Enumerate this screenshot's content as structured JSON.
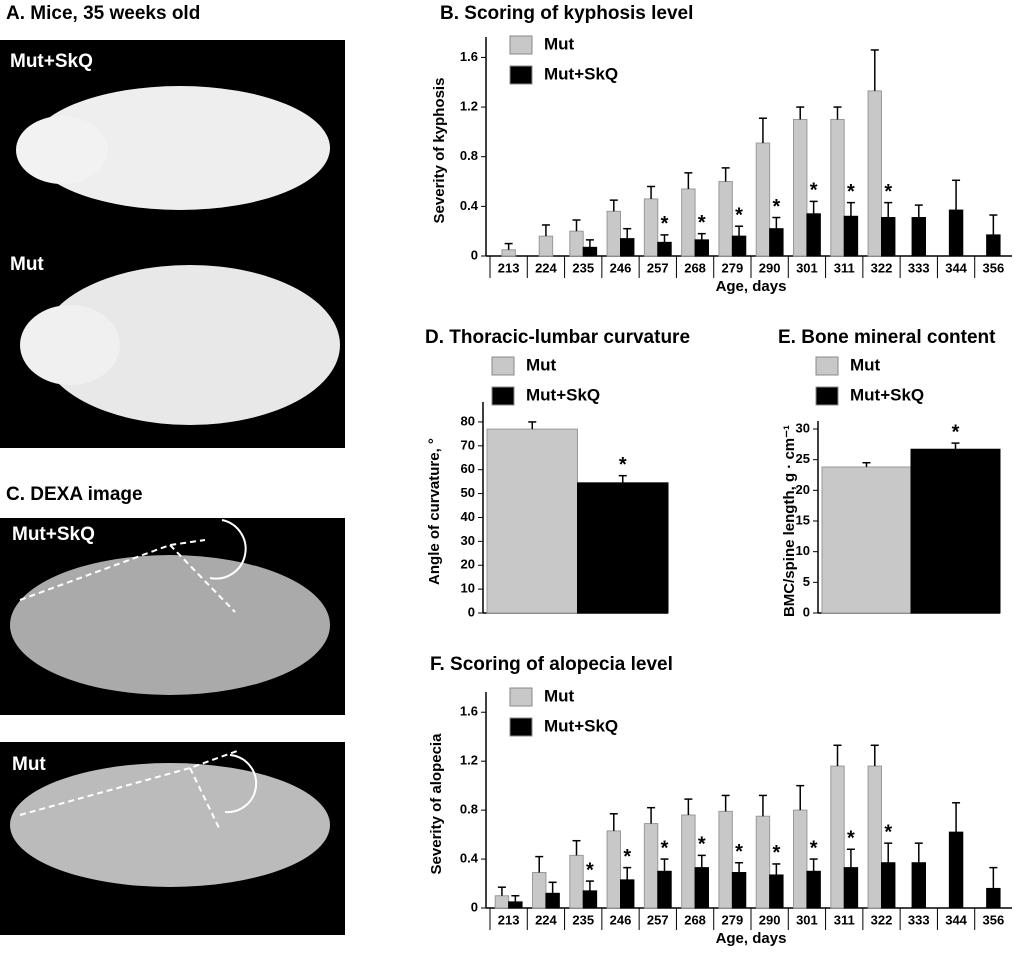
{
  "photos": {
    "a_title": "A.  Mice, 35 weeks old",
    "a_labels": [
      "Mut+SkQ",
      "Mut"
    ],
    "c_title": "C.  DEXA image",
    "c_labels": [
      "Mut+SkQ",
      "Mut"
    ]
  },
  "chart_data": [
    {
      "type": "bar",
      "title": "B.  Scoring of kyphosis level",
      "x_label": "Age, days",
      "y_label": "Severity of kyphosis",
      "categories": [
        "213",
        "224",
        "235",
        "246",
        "257",
        "268",
        "279",
        "290",
        "301",
        "311",
        "322",
        "333",
        "344",
        "356"
      ],
      "series": [
        {
          "name": "Mut",
          "color": "#c8c8c8",
          "values": [
            0.05,
            0.16,
            0.2,
            0.36,
            0.46,
            0.54,
            0.6,
            0.91,
            1.1,
            1.1,
            1.33,
            null,
            null,
            null
          ],
          "errors": [
            0.05,
            0.09,
            0.09,
            0.09,
            0.1,
            0.13,
            0.11,
            0.2,
            0.1,
            0.1,
            0.33,
            null,
            null,
            null
          ]
        },
        {
          "name": "Mut+SkQ",
          "color": "#000000",
          "values": [
            null,
            null,
            0.07,
            0.14,
            0.11,
            0.13,
            0.16,
            0.22,
            0.34,
            0.32,
            0.31,
            0.31,
            0.37,
            0.17
          ],
          "errors": [
            null,
            null,
            0.06,
            0.08,
            0.06,
            0.05,
            0.08,
            0.09,
            0.1,
            0.11,
            0.12,
            0.1,
            0.24,
            0.16
          ]
        }
      ],
      "annotations": [
        {
          "series": "Mut+SkQ",
          "x": "257",
          "text": "*"
        },
        {
          "series": "Mut+SkQ",
          "x": "268",
          "text": "*"
        },
        {
          "series": "Mut+SkQ",
          "x": "279",
          "text": "*"
        },
        {
          "series": "Mut+SkQ",
          "x": "290",
          "text": "*"
        },
        {
          "series": "Mut+SkQ",
          "x": "301",
          "text": "*"
        },
        {
          "series": "Mut+SkQ",
          "x": "311",
          "text": "*"
        },
        {
          "series": "Mut+SkQ",
          "x": "322",
          "text": "*"
        }
      ],
      "ylim": [
        0,
        1.7
      ],
      "yticks": [
        0,
        0.4,
        0.8,
        1.2,
        1.6
      ]
    },
    {
      "type": "bar",
      "title": "D.  Thoracic-lumbar curvature",
      "y_label": "Angle of curvature, °",
      "series": [
        {
          "name": "Mut",
          "color": "#c8c8c8",
          "values": [
            77
          ],
          "errors": [
            3
          ]
        },
        {
          "name": "Mut+SkQ",
          "color": "#000000",
          "values": [
            54.5
          ],
          "errors": [
            3
          ]
        }
      ],
      "annotations": [
        {
          "series": "Mut+SkQ",
          "text": "*"
        }
      ],
      "ylim": [
        0,
        85
      ],
      "yticks": [
        0,
        10,
        20,
        30,
        40,
        50,
        60,
        70,
        80
      ]
    },
    {
      "type": "bar",
      "title": "E.  Bone mineral content",
      "y_label": "BMC/spine length, g · cm⁻¹",
      "series": [
        {
          "name": "Mut",
          "color": "#c8c8c8",
          "values": [
            23.8
          ],
          "errors": [
            0.7
          ]
        },
        {
          "name": "Mut+SkQ",
          "color": "#000000",
          "values": [
            26.7
          ],
          "errors": [
            1
          ]
        }
      ],
      "annotations": [
        {
          "series": "Mut+SkQ",
          "text": "*"
        }
      ],
      "ylim": [
        0,
        30
      ],
      "yticks": [
        0,
        5,
        10,
        15,
        20,
        25,
        30
      ]
    },
    {
      "type": "bar",
      "title": "F.  Scoring of alopecia level",
      "x_label": "Age, days",
      "y_label": "Severity of alopecia",
      "categories": [
        "213",
        "224",
        "235",
        "246",
        "257",
        "268",
        "279",
        "290",
        "301",
        "311",
        "322",
        "333",
        "344",
        "356"
      ],
      "series": [
        {
          "name": "Mut",
          "color": "#c8c8c8",
          "values": [
            0.1,
            0.29,
            0.43,
            0.63,
            0.69,
            0.76,
            0.79,
            0.75,
            0.8,
            1.16,
            1.16,
            null,
            null,
            null
          ],
          "errors": [
            0.07,
            0.13,
            0.12,
            0.14,
            0.13,
            0.13,
            0.13,
            0.17,
            0.2,
            0.17,
            0.17,
            null,
            null,
            null
          ]
        },
        {
          "name": "Mut+SkQ",
          "color": "#000000",
          "values": [
            0.05,
            0.12,
            0.14,
            0.23,
            0.3,
            0.33,
            0.29,
            0.27,
            0.3,
            0.33,
            0.37,
            0.37,
            0.62,
            0.16
          ],
          "errors": [
            0.05,
            0.09,
            0.08,
            0.1,
            0.1,
            0.1,
            0.08,
            0.09,
            0.1,
            0.15,
            0.16,
            0.16,
            0.24,
            0.17
          ]
        }
      ],
      "annotations": [
        {
          "series": "Mut+SkQ",
          "x": "235",
          "text": "*"
        },
        {
          "series": "Mut+SkQ",
          "x": "246",
          "text": "*"
        },
        {
          "series": "Mut+SkQ",
          "x": "257",
          "text": "*"
        },
        {
          "series": "Mut+SkQ",
          "x": "268",
          "text": "*"
        },
        {
          "series": "Mut+SkQ",
          "x": "279",
          "text": "*"
        },
        {
          "series": "Mut+SkQ",
          "x": "290",
          "text": "*"
        },
        {
          "series": "Mut+SkQ",
          "x": "301",
          "text": "*"
        },
        {
          "series": "Mut+SkQ",
          "x": "311",
          "text": "*"
        },
        {
          "series": "Mut+SkQ",
          "x": "322",
          "text": "*"
        }
      ],
      "ylim": [
        0,
        1.7
      ],
      "yticks": [
        0,
        0.4,
        0.8,
        1.2,
        1.6
      ]
    }
  ]
}
